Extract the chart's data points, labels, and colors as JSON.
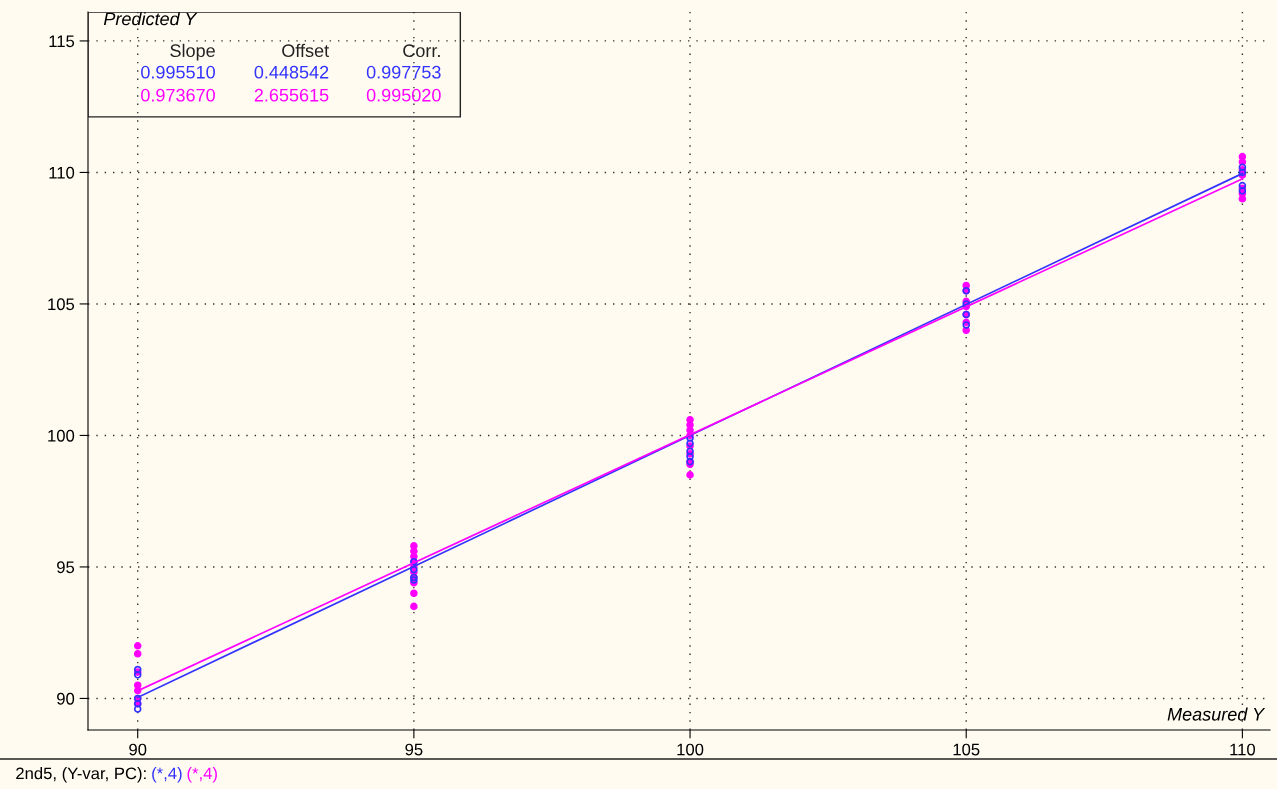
{
  "chart_data": {
    "type": "scatter",
    "xlabel": "Measured Y",
    "ylabel": "Predicted Y",
    "xlim": [
      89.1,
      110.5
    ],
    "ylim": [
      88.8,
      116.1
    ],
    "xticks": [
      90,
      95,
      100,
      105,
      110
    ],
    "yticks": [
      90,
      95,
      100,
      105,
      110,
      115
    ],
    "grid": true,
    "marker": "circle",
    "series": [
      {
        "color": "#3333ff",
        "x": [
          90,
          90,
          90,
          90,
          90,
          95,
          95,
          95,
          95,
          100,
          100,
          100,
          100,
          100,
          105,
          105,
          105,
          105,
          110,
          110,
          110,
          110
        ],
        "values": [
          91.1,
          90.9,
          90.0,
          89.8,
          89.6,
          95.2,
          94.9,
          94.6,
          94.5,
          99.9,
          99.7,
          99.4,
          99.2,
          99.0,
          105.5,
          105.0,
          104.6,
          104.2,
          110.2,
          110.0,
          109.5,
          109.3
        ]
      },
      {
        "color": "#ff00ff",
        "x": [
          90,
          90,
          90,
          90,
          90,
          90,
          90,
          95,
          95,
          95,
          95,
          95,
          95,
          95,
          95,
          95,
          95,
          100,
          100,
          100,
          100,
          100,
          100,
          100,
          100,
          100,
          105,
          105,
          105,
          105,
          105,
          105,
          105,
          110,
          110,
          110,
          110,
          110,
          110,
          110
        ],
        "values": [
          92.0,
          91.7,
          91.0,
          90.5,
          90.3,
          90.0,
          89.8,
          95.8,
          95.6,
          95.4,
          95.2,
          95.0,
          94.8,
          94.6,
          94.4,
          94.0,
          93.5,
          100.6,
          100.4,
          100.2,
          100.0,
          99.6,
          99.3,
          99.0,
          98.9,
          98.5,
          105.7,
          105.5,
          105.1,
          104.9,
          104.6,
          104.3,
          104.0,
          110.6,
          110.4,
          110.1,
          109.9,
          109.4,
          109.2,
          109.0
        ]
      },
      {
        "type": "line",
        "marker": "none",
        "color": "#3333ff",
        "x": [
          90,
          110
        ],
        "values": [
          90.04,
          109.96
        ]
      },
      {
        "type": "line",
        "marker": "none",
        "color": "#ff00ff",
        "x": [
          90,
          110
        ],
        "values": [
          90.29,
          109.76
        ]
      }
    ],
    "annotations": [
      "Slope",
      "Offset",
      "Corr.",
      "0.995510",
      "0.448542",
      "0.997753",
      "0.973670",
      "2.655615",
      "0.995020",
      "2nd5, (Y-var, PC):",
      "(*,4)",
      "(*,4)"
    ]
  }
}
